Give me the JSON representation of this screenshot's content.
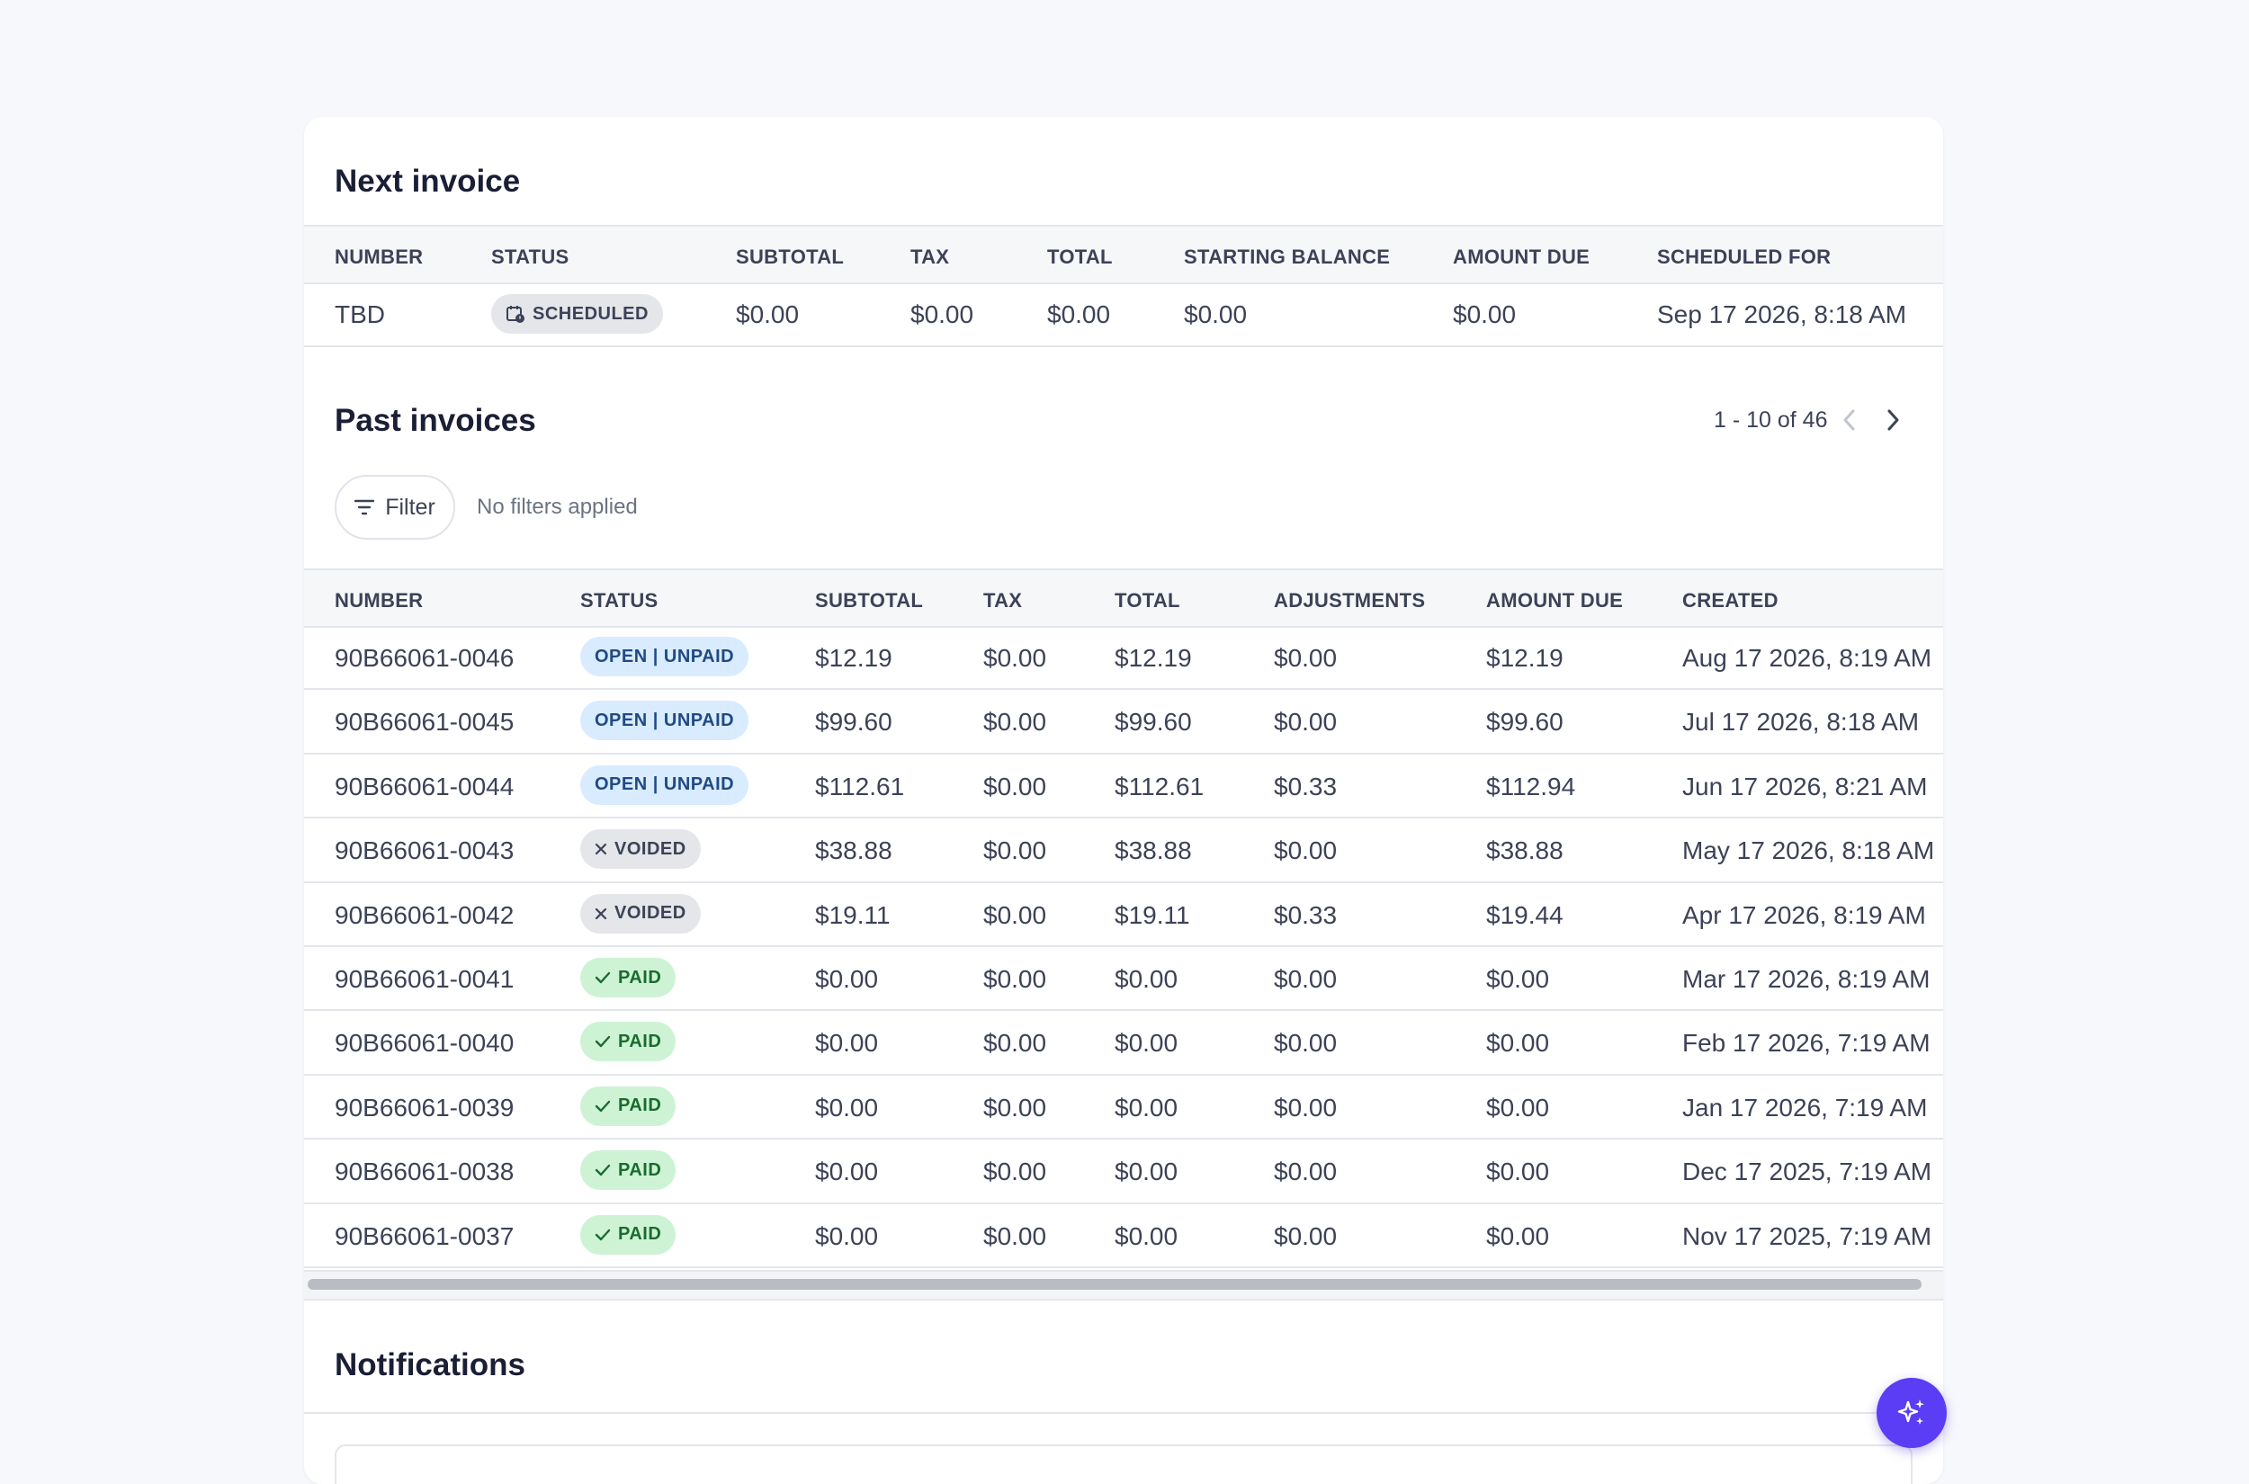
{
  "next_invoice": {
    "title": "Next invoice",
    "columns": [
      "NUMBER",
      "STATUS",
      "SUBTOTAL",
      "TAX",
      "TOTAL",
      "STARTING BALANCE",
      "AMOUNT DUE",
      "SCHEDULED FOR"
    ],
    "row": {
      "number": "TBD",
      "status": "SCHEDULED",
      "subtotal": "$0.00",
      "tax": "$0.00",
      "total": "$0.00",
      "starting_balance": "$0.00",
      "amount_due": "$0.00",
      "scheduled_for": "Sep 17 2026, 8:18 AM"
    }
  },
  "past_invoices": {
    "title": "Past invoices",
    "pagination": "1 - 10 of 46",
    "filter_label": "Filter",
    "filter_status": "No filters applied",
    "columns": [
      "NUMBER",
      "STATUS",
      "SUBTOTAL",
      "TAX",
      "TOTAL",
      "ADJUSTMENTS",
      "AMOUNT DUE",
      "CREATED"
    ],
    "rows": [
      {
        "number": "90B66061-0046",
        "status": "OPEN | UNPAID",
        "status_type": "open",
        "subtotal": "$12.19",
        "tax": "$0.00",
        "total": "$12.19",
        "adjustments": "$0.00",
        "amount_due": "$12.19",
        "created": "Aug 17 2026, 8:19 AM"
      },
      {
        "number": "90B66061-0045",
        "status": "OPEN | UNPAID",
        "status_type": "open",
        "subtotal": "$99.60",
        "tax": "$0.00",
        "total": "$99.60",
        "adjustments": "$0.00",
        "amount_due": "$99.60",
        "created": "Jul 17 2026, 8:18 AM"
      },
      {
        "number": "90B66061-0044",
        "status": "OPEN | UNPAID",
        "status_type": "open",
        "subtotal": "$112.61",
        "tax": "$0.00",
        "total": "$112.61",
        "adjustments": "$0.33",
        "amount_due": "$112.94",
        "created": "Jun 17 2026, 8:21 AM"
      },
      {
        "number": "90B66061-0043",
        "status": "VOIDED",
        "status_type": "void",
        "subtotal": "$38.88",
        "tax": "$0.00",
        "total": "$38.88",
        "adjustments": "$0.00",
        "amount_due": "$38.88",
        "created": "May 17 2026, 8:18 AM"
      },
      {
        "number": "90B66061-0042",
        "status": "VOIDED",
        "status_type": "void",
        "subtotal": "$19.11",
        "tax": "$0.00",
        "total": "$19.11",
        "adjustments": "$0.33",
        "amount_due": "$19.44",
        "created": "Apr 17 2026, 8:19 AM"
      },
      {
        "number": "90B66061-0041",
        "status": "PAID",
        "status_type": "paid",
        "subtotal": "$0.00",
        "tax": "$0.00",
        "total": "$0.00",
        "adjustments": "$0.00",
        "amount_due": "$0.00",
        "created": "Mar 17 2026, 8:19 AM"
      },
      {
        "number": "90B66061-0040",
        "status": "PAID",
        "status_type": "paid",
        "subtotal": "$0.00",
        "tax": "$0.00",
        "total": "$0.00",
        "adjustments": "$0.00",
        "amount_due": "$0.00",
        "created": "Feb 17 2026, 7:19 AM"
      },
      {
        "number": "90B66061-0039",
        "status": "PAID",
        "status_type": "paid",
        "subtotal": "$0.00",
        "tax": "$0.00",
        "total": "$0.00",
        "adjustments": "$0.00",
        "amount_due": "$0.00",
        "created": "Jan 17 2026, 7:19 AM"
      },
      {
        "number": "90B66061-0038",
        "status": "PAID",
        "status_type": "paid",
        "subtotal": "$0.00",
        "tax": "$0.00",
        "total": "$0.00",
        "adjustments": "$0.00",
        "amount_due": "$0.00",
        "created": "Dec 17 2025, 7:19 AM"
      },
      {
        "number": "90B66061-0037",
        "status": "PAID",
        "status_type": "paid",
        "subtotal": "$0.00",
        "tax": "$0.00",
        "total": "$0.00",
        "adjustments": "$0.00",
        "amount_due": "$0.00",
        "created": "Nov 17 2025, 7:19 AM"
      }
    ]
  },
  "notifications": {
    "title": "Notifications"
  },
  "icons": {
    "filter": "filter-icon",
    "prev": "chevron-left-icon",
    "next": "chevron-right-icon",
    "assistant": "sparkle-icon"
  },
  "colors": {
    "accent": "#5b3df5",
    "open_bg": "#d9ebff",
    "paid_bg": "#cdf3d4",
    "void_bg": "#e4e6ea"
  }
}
